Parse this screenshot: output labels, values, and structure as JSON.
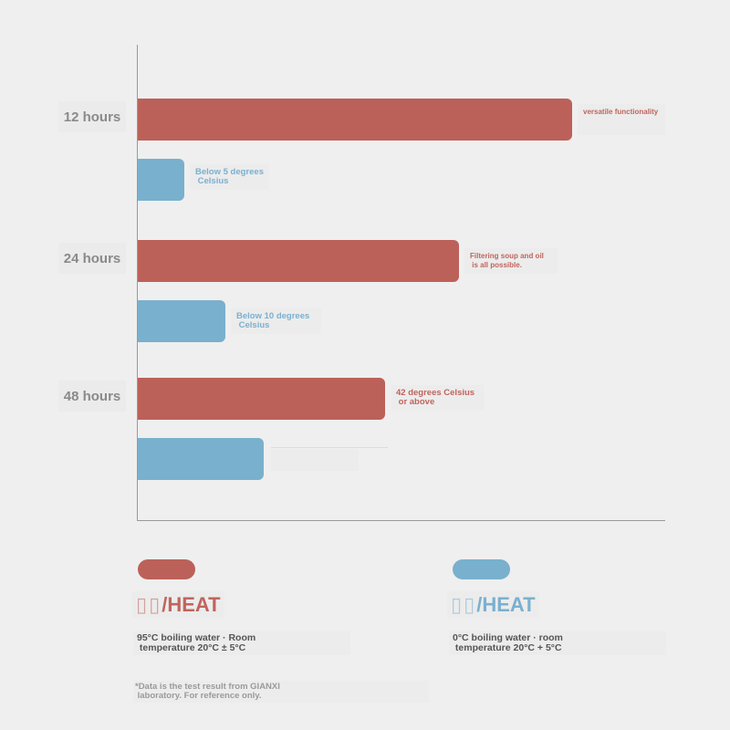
{
  "chart_data": {
    "type": "bar",
    "orientation": "horizontal",
    "categories": [
      "12 hours",
      "24 hours",
      "48 hours"
    ],
    "series": [
      {
        "name": "/HEAT",
        "color": "#bc6159",
        "values": [
          79,
          58.5,
          45
        ]
      },
      {
        "name": "/HEAT",
        "color": "#79b0cd",
        "values": [
          8.5,
          16,
          23
        ]
      }
    ],
    "annotations": {
      "red": [
        "versatile functionality",
        "Filtering soup and oil\n is all possible.",
        "42 degrees Celsius\n or above"
      ],
      "blue": [
        "Below 5 degrees\n Celsius",
        "Below 10 degrees\n Celsius",
        ""
      ]
    },
    "xlim": [
      0,
      96
    ],
    "grid": false,
    "legend_position": "bottom"
  },
  "legend": {
    "hot": {
      "glyphs": "▯▯",
      "title": "/HEAT",
      "desc": "95°C boiling water · Room\n temperature 20°C ± 5°C",
      "color": "#bc6159"
    },
    "cold": {
      "glyphs": "▯▯",
      "title": "/HEAT",
      "desc": "0°C boiling water · room\n temperature 20°C + 5°C",
      "color": "#79b0cd"
    }
  },
  "footnote": "*Data is the test result from GIANXI\n laboratory. For reference only."
}
